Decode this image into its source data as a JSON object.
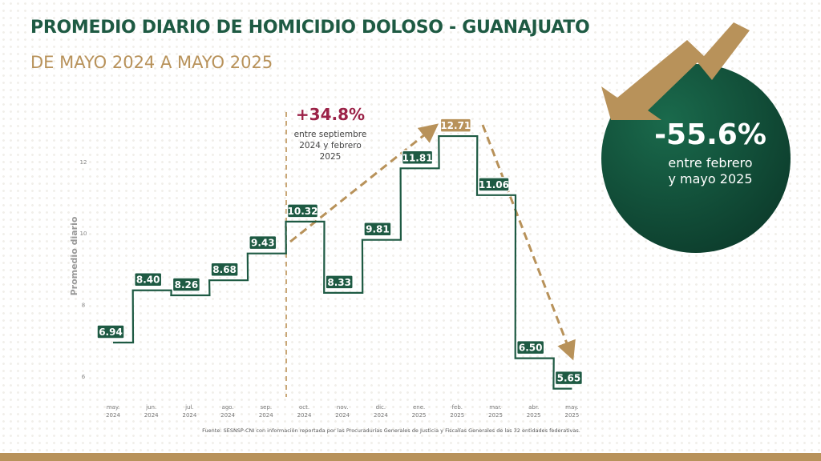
{
  "header": {
    "title": "PROMEDIO DIARIO DE HOMICIDIO DOLOSO - GUANAJUATO",
    "subtitle": "DE MAYO 2024 A MAYO 2025"
  },
  "colors": {
    "green": "#1e5a43",
    "gold": "#b8925a",
    "magenta": "#9b2247"
  },
  "chart_data": {
    "type": "line",
    "step": true,
    "title": "PROMEDIO DIARIO DE HOMICIDIO DOLOSO - GUANAJUATO",
    "ylabel": "Promedio diario",
    "xlabel": "",
    "ylim": [
      6,
      12
    ],
    "yticks": [
      6,
      8,
      10,
      12
    ],
    "categories": [
      [
        "may.",
        "2024"
      ],
      [
        "jun.",
        "2024"
      ],
      [
        "jul.",
        "2024"
      ],
      [
        "ago.",
        "2024"
      ],
      [
        "sep.",
        "2024"
      ],
      [
        "oct.",
        "2024"
      ],
      [
        "nov.",
        "2024"
      ],
      [
        "dic.",
        "2024"
      ],
      [
        "ene.",
        "2025"
      ],
      [
        "feb.",
        "2025"
      ],
      [
        "mar.",
        "2025"
      ],
      [
        "abr.",
        "2025"
      ],
      [
        "may.",
        "2025"
      ]
    ],
    "values": [
      6.94,
      8.4,
      8.26,
      8.68,
      9.43,
      10.32,
      8.33,
      9.81,
      11.81,
      12.71,
      11.06,
      6.5,
      5.65
    ],
    "labels": [
      "6.94",
      "8.40",
      "8.26",
      "8.68",
      "9.43",
      "10.32",
      "8.33",
      "9.81",
      "11.81",
      "12.71",
      "11.06",
      "6.50",
      "5.65"
    ],
    "highlight_index": 9,
    "annotations": {
      "increase": {
        "value": "+34.8%",
        "line1": "entre septiembre",
        "line2": "2024 y febrero",
        "line3": "2025"
      },
      "decrease": {
        "value": "-55.6%",
        "line1": "entre febrero",
        "line2": "y mayo 2025"
      }
    },
    "source": "Fuente: SESNSP-CNI con información reportada por las Procuradurías Generales de Justicia y Fiscalías Generales de las 32 entidades federativas."
  }
}
